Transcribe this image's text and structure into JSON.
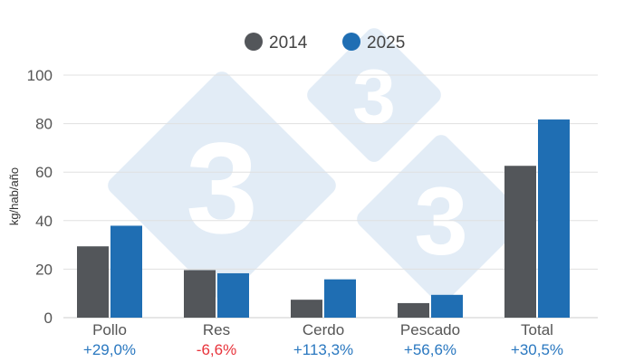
{
  "chart_data": {
    "type": "bar",
    "ylabel": "kg/hab/año",
    "ylim": [
      0,
      100
    ],
    "yticks": [
      0,
      20,
      40,
      60,
      80,
      100
    ],
    "grid": true,
    "legend_placement": "top-center",
    "categories": [
      "Pollo",
      "Res",
      "Cerdo",
      "Pescado",
      "Total"
    ],
    "series": [
      {
        "name": "2014",
        "color": "#53565a",
        "values": [
          29.4,
          19.6,
          7.4,
          6.0,
          62.6
        ]
      },
      {
        "name": "2025",
        "color": "#1f6eb3",
        "values": [
          37.9,
          18.3,
          15.8,
          9.4,
          81.7
        ]
      }
    ],
    "change_labels": [
      {
        "text": "+29,0%",
        "color": "#2a78c0"
      },
      {
        "text": "-6,6%",
        "color": "#e8333b"
      },
      {
        "text": "+113,3%",
        "color": "#2a78c0"
      },
      {
        "text": "+56,6%",
        "color": "#2a78c0"
      },
      {
        "text": "+30,5%",
        "color": "#2a78c0"
      }
    ],
    "watermark": "333"
  }
}
